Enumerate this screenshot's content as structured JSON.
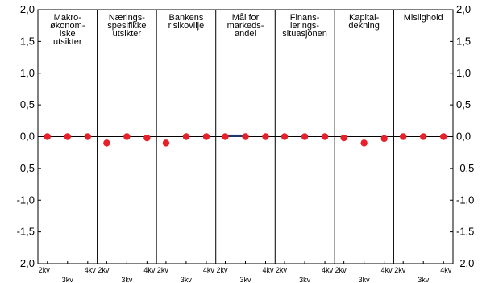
{
  "chart_data": {
    "type": "scatter",
    "ylim": [
      -2.0,
      2.0
    ],
    "yticks": [
      "2,0",
      "1,5",
      "1,0",
      "0,5",
      "0,0",
      "-0,5",
      "-1,0",
      "-1,5",
      "-2,0"
    ],
    "ytick_values": [
      2.0,
      1.5,
      1.0,
      0.5,
      0.0,
      -0.5,
      -1.0,
      -1.5,
      -2.0
    ],
    "grid": false,
    "x_tick_labels": [
      "2kv",
      "3kv",
      "4kv"
    ],
    "point_color": "#e8202a",
    "bar_color": "#1f3b6e",
    "panels": [
      {
        "title_lines": [
          "Makro-",
          "økonom-",
          "iske",
          "utsikter"
        ],
        "values": [
          0.0,
          0.0,
          0.0
        ],
        "bars": [
          0,
          0,
          0
        ]
      },
      {
        "title_lines": [
          "Nærings-",
          "spesifikke",
          "utsikter"
        ],
        "values": [
          -0.1,
          0.0,
          -0.02
        ],
        "bars": [
          0,
          0,
          0
        ]
      },
      {
        "title_lines": [
          "Bankens",
          "risikovilje"
        ],
        "values": [
          -0.1,
          0.0,
          0.0
        ],
        "bars": [
          0,
          0,
          0
        ]
      },
      {
        "title_lines": [
          "Mål for",
          "markeds-",
          "andel"
        ],
        "values": [
          0.0,
          0.0,
          0.0
        ],
        "bars": [
          0.02,
          0,
          0
        ]
      },
      {
        "title_lines": [
          "Finans-",
          "ierings-",
          "situasjonen"
        ],
        "values": [
          0.0,
          0.0,
          0.0
        ],
        "bars": [
          0,
          0,
          0
        ]
      },
      {
        "title_lines": [
          "Kapital-",
          "dekning"
        ],
        "values": [
          -0.02,
          -0.1,
          -0.03
        ],
        "bars": [
          0,
          0,
          0
        ]
      },
      {
        "title_lines": [
          "Mislighold"
        ],
        "values": [
          0.0,
          0.0,
          0.0
        ],
        "bars": [
          0,
          0,
          0
        ]
      }
    ]
  }
}
